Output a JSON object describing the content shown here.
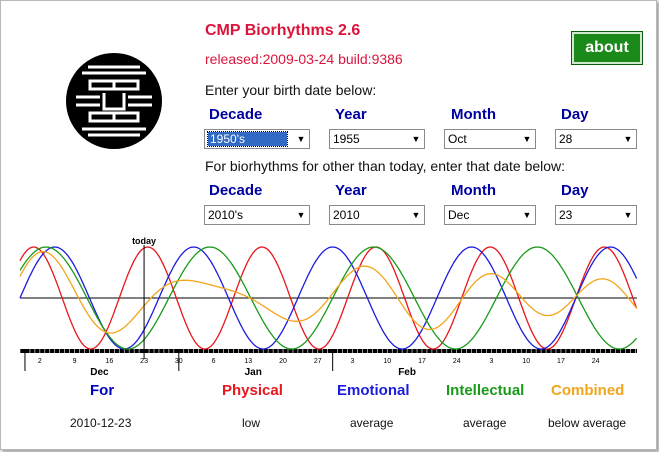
{
  "app": {
    "title": "CMP Biorhythms 2.6",
    "release": "released:2009-03-24 build:9386",
    "about_label": "about"
  },
  "birth": {
    "prompt": "Enter your birth date below:",
    "headers": {
      "decade": "Decade",
      "year": "Year",
      "month": "Month",
      "day": "Day"
    },
    "values": {
      "decade": "1950's",
      "year": "1955",
      "month": "Oct",
      "day": "28"
    }
  },
  "target": {
    "prompt": "For biorhythms for other than today, enter that date below:",
    "headers": {
      "decade": "Decade",
      "year": "Year",
      "month": "Month",
      "day": "Day"
    },
    "values": {
      "decade": "2010's",
      "year": "2010",
      "month": "Dec",
      "day": "23"
    }
  },
  "chart_data": {
    "type": "line",
    "today_label": "today",
    "today_index": 25,
    "x_days": 93,
    "ylim": [
      -1,
      1
    ],
    "month_labels": [
      {
        "label": "Dec",
        "day_index": 16
      },
      {
        "label": "Jan",
        "day_index": 47
      },
      {
        "label": "Feb",
        "day_index": 78
      }
    ],
    "tick_labels": [
      {
        "label": "2",
        "day_index": 4
      },
      {
        "label": "9",
        "day_index": 11
      },
      {
        "label": "16",
        "day_index": 18
      },
      {
        "label": "23",
        "day_index": 25
      },
      {
        "label": "30",
        "day_index": 32
      },
      {
        "label": "6",
        "day_index": 39
      },
      {
        "label": "13",
        "day_index": 46
      },
      {
        "label": "20",
        "day_index": 53
      },
      {
        "label": "27",
        "day_index": 60
      },
      {
        "label": "3",
        "day_index": 67
      },
      {
        "label": "10",
        "day_index": 74
      },
      {
        "label": "17",
        "day_index": 81
      },
      {
        "label": "24",
        "day_index": 88
      },
      {
        "label": "3",
        "day_index": 95
      },
      {
        "label": "10",
        "day_index": 102
      },
      {
        "label": "17",
        "day_index": 109
      },
      {
        "label": "24",
        "day_index": 116
      }
    ],
    "series": [
      {
        "name": "Physical",
        "period": 23,
        "phase_day": 20,
        "color": "#e8171c"
      },
      {
        "name": "Emotional",
        "period": 28,
        "phase_day": 28,
        "color": "#1c1ce0"
      },
      {
        "name": "Intellectual",
        "period": 33,
        "phase_day": 30,
        "color": "#1a9a1a"
      },
      {
        "name": "Combined",
        "color": "#f2a51a"
      }
    ]
  },
  "legend": {
    "for_label": "For",
    "date": "2010-12-23",
    "items": [
      {
        "name": "Physical",
        "status": "low",
        "color": "#e8171c"
      },
      {
        "name": "Emotional",
        "status": "average",
        "color": "#1c1ce0"
      },
      {
        "name": "Intellectual",
        "status": "average",
        "color": "#1a9a1a"
      },
      {
        "name": "Combined",
        "status": "below average",
        "color": "#f2a51a"
      }
    ]
  }
}
